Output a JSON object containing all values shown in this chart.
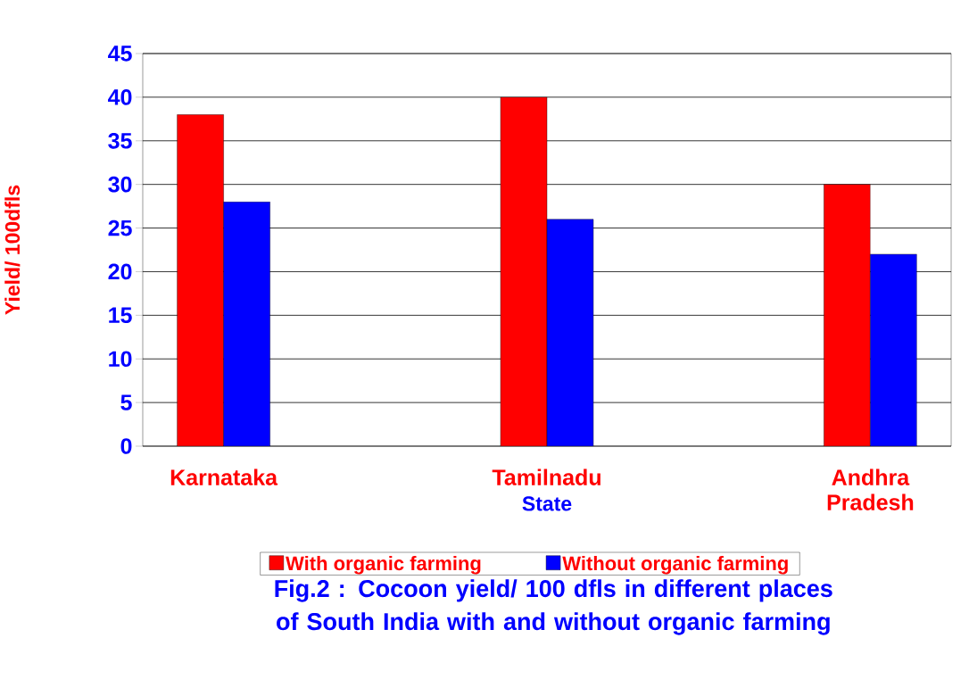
{
  "chart_data": {
    "type": "bar",
    "title": "Fig.2 : Cocoon yield/ 100 dfls in different places of South India with and without organic farming",
    "xlabel": "State",
    "ylabel": "Yield/ 100dfls",
    "categories": [
      "Karnataka",
      null,
      "Tamilnadu",
      null,
      "Andhra Pradesh"
    ],
    "series": [
      {
        "name": "With organic farming",
        "color": "#ff0000",
        "values": [
          38,
          null,
          40,
          null,
          30
        ]
      },
      {
        "name": "Without organic farming",
        "color": "#0000ff",
        "values": [
          28,
          null,
          26,
          null,
          22
        ]
      }
    ],
    "ylim": [
      0,
      45
    ],
    "yticks": [
      0,
      5,
      10,
      15,
      20,
      25,
      30,
      35,
      40,
      45
    ],
    "grid": "y",
    "legend": "bottom"
  }
}
